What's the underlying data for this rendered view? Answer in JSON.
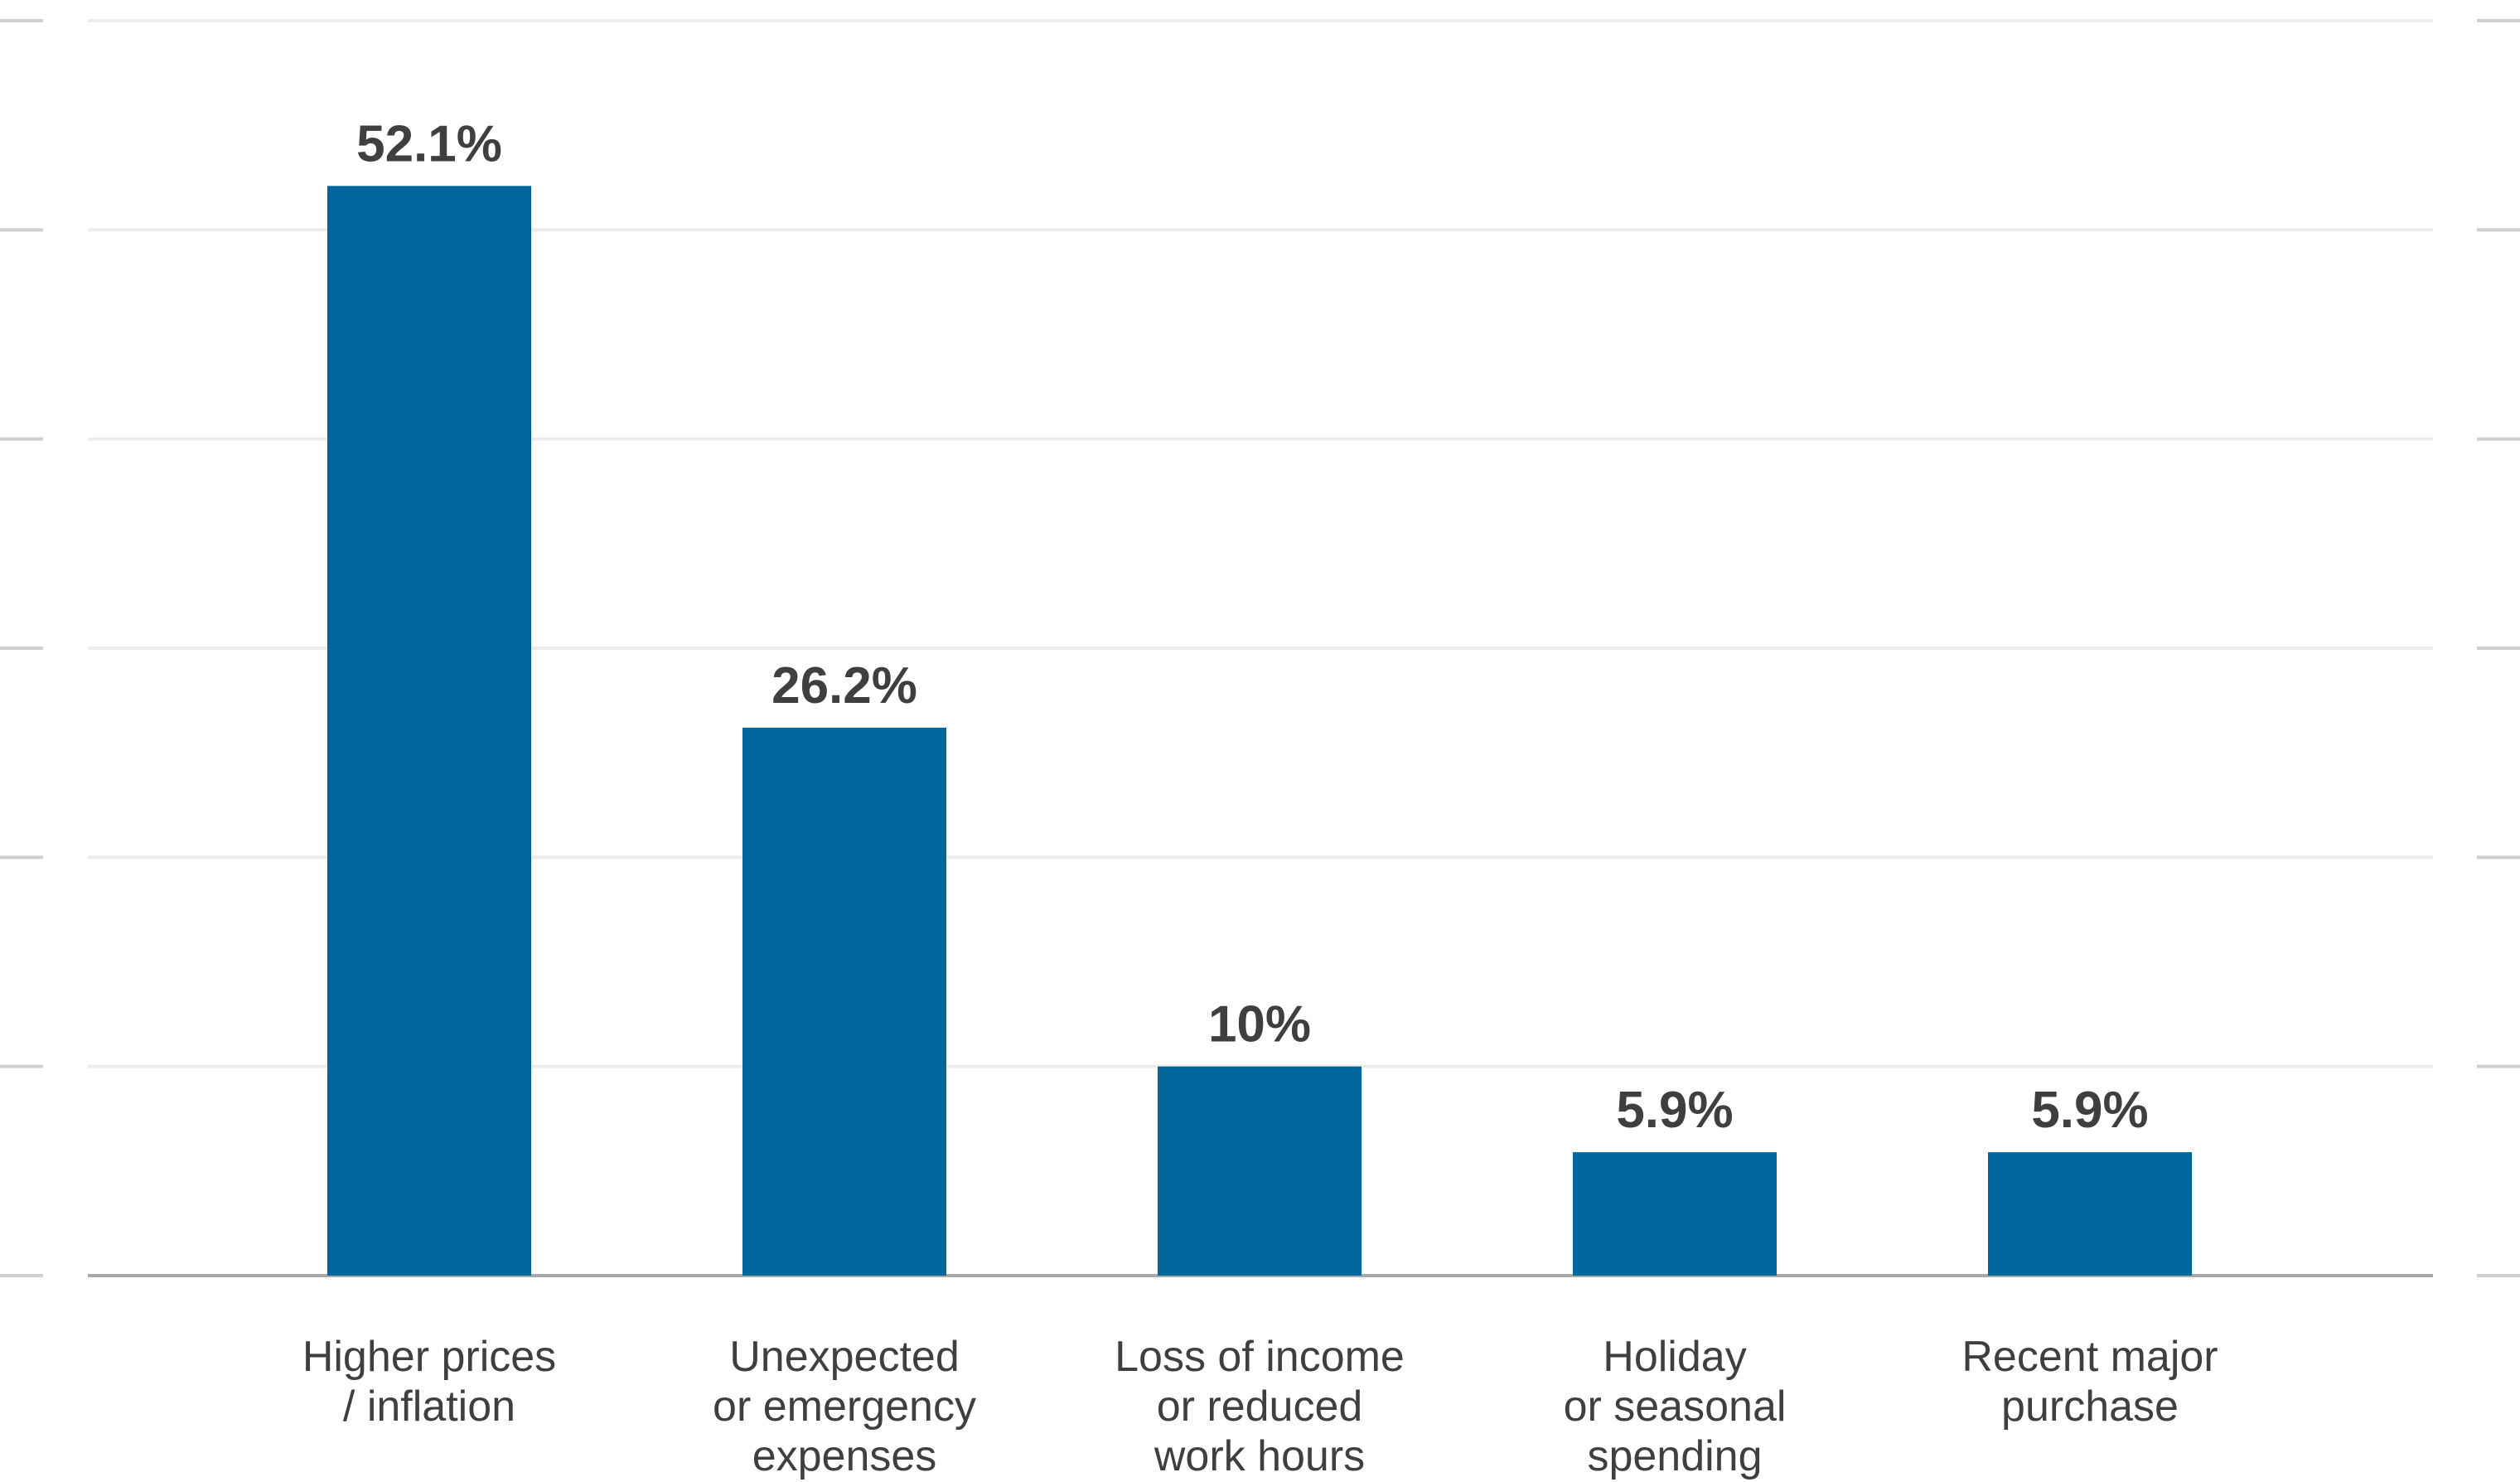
{
  "chart_data": {
    "type": "bar",
    "categories": [
      [
        "Higher prices",
        "/ inflation"
      ],
      [
        "Unexpected",
        "or emergency",
        "expenses"
      ],
      [
        "Loss of income",
        "or reduced",
        "work hours"
      ],
      [
        "Holiday",
        "or seasonal",
        "spending"
      ],
      [
        "Recent major",
        "purchase"
      ]
    ],
    "values": [
      52.1,
      26.2,
      10,
      5.9,
      5.9
    ],
    "value_labels": [
      "52.1%",
      "26.2%",
      "10%",
      "5.9%",
      "5.9%"
    ],
    "ylim": [
      0,
      60
    ],
    "gridlines": [
      0,
      10,
      20,
      30,
      40,
      50,
      60
    ],
    "grid": true,
    "colors": {
      "bar": "#01669b",
      "text": "#3f3f3f",
      "grid": "#ececec",
      "axis": "#a8a8a8"
    }
  }
}
